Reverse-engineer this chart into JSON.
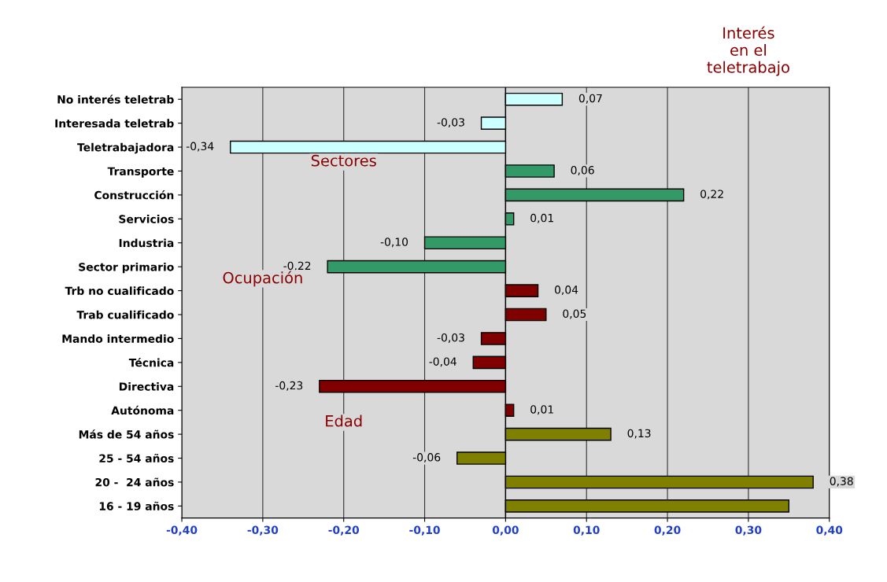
{
  "chart_data": {
    "type": "bar",
    "orientation": "horizontal",
    "categories": [
      "No interés teletrab",
      "Interesada teletrab",
      "Teletrabajadora",
      "Transporte",
      "Construcción",
      "Servicios",
      "Industria",
      "Sector primario",
      "Trb no cualificado",
      "Trab cualificado",
      "Mando intermedio",
      "Técnica",
      "Directiva",
      "Autónoma",
      "Más de 54 años",
      "25 - 54 años",
      "20 -  24 años",
      "16 - 19 años"
    ],
    "values": [
      0.07,
      -0.03,
      -0.34,
      0.06,
      0.22,
      0.01,
      -0.1,
      -0.22,
      0.04,
      0.05,
      -0.03,
      -0.04,
      -0.23,
      0.01,
      0.13,
      -0.06,
      0.38,
      0.35
    ],
    "value_labels": [
      "0,07",
      "-0,03",
      "-0,34",
      "0,06",
      "0,22",
      "0,01",
      "-0,10",
      "-0,22",
      "0,04",
      "0,05",
      "-0,03",
      "-0,04",
      "-0,23",
      "0,01",
      "0,13",
      "-0,06",
      "0,38",
      null
    ],
    "colors": [
      "#ccffff",
      "#ccffff",
      "#ccffff",
      "#339966",
      "#339966",
      "#339966",
      "#339966",
      "#339966",
      "#800000",
      "#800000",
      "#800000",
      "#800000",
      "#800000",
      "#800000",
      "#808000",
      "#808000",
      "#808000",
      "#808000"
    ],
    "xlim": [
      -0.4,
      0.4
    ],
    "xticks": [
      {
        "value": -0.4,
        "label": "-0,40"
      },
      {
        "value": -0.3,
        "label": "-0,30"
      },
      {
        "value": -0.2,
        "label": "-0,20"
      },
      {
        "value": -0.1,
        "label": "-0,10"
      },
      {
        "value": 0,
        "label": "0,00"
      },
      {
        "value": 0.1,
        "label": "0,10"
      },
      {
        "value": 0.2,
        "label": "0,20"
      },
      {
        "value": 0.3,
        "label": "0,30"
      },
      {
        "value": 0.4,
        "label": "0,40"
      }
    ],
    "grid": "x",
    "annotations": [
      "Interés\nen el\nteletrabajo",
      "Sectores",
      "Ocupación",
      "Edad"
    ]
  }
}
